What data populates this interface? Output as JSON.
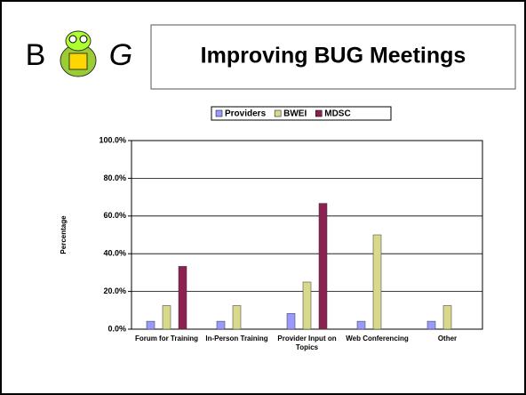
{
  "slide_title": "Improving BUG Meetings",
  "logo": {
    "left": "B",
    "right": "G"
  },
  "chart_data": {
    "type": "bar",
    "y_label": "Percentage",
    "categories": [
      "Forum for Training",
      "In-Person Training",
      "Provider Input on Topics",
      "Web Conferencing",
      "Other"
    ],
    "series": [
      {
        "name": "Providers",
        "color": "#9999ff",
        "values": [
          4.2,
          4.2,
          8.3,
          4.2,
          4.2
        ]
      },
      {
        "name": "BWEI",
        "color": "#d9d98c",
        "values": [
          12.5,
          12.5,
          25,
          50,
          12.5
        ]
      },
      {
        "name": "MDSC",
        "color": "#8b2252",
        "values": [
          33.3,
          0,
          66.7,
          0,
          0
        ]
      }
    ],
    "ylim": [
      0,
      100
    ],
    "yticks": [
      {
        "value": 0,
        "label": "0.0%"
      },
      {
        "value": 20,
        "label": "20.0%"
      },
      {
        "value": 40,
        "label": "40.0%"
      },
      {
        "value": 60,
        "label": "60.0%"
      },
      {
        "value": 80,
        "label": "80.0%"
      },
      {
        "value": 100,
        "label": "100.0%"
      }
    ],
    "grid": true,
    "legend": "top"
  }
}
